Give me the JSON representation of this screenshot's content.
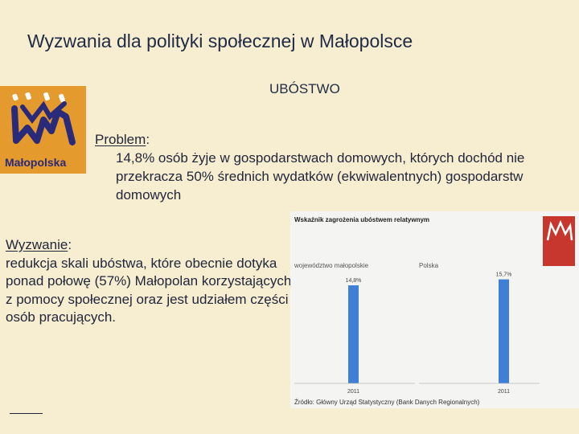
{
  "slide": {
    "title": "Wyzwania dla polityki społecznej w Małopolsce",
    "subtitle": "UBÓSTWO"
  },
  "logo": {
    "text": "Małopolska",
    "color": "#e59a2d"
  },
  "problem": {
    "label": "Problem",
    "colon": ":",
    "text": "14,8% osób  żyje  w gospodarstwach domowych, których dochód nie przekracza 50% średnich wydatków (ekwiwalentnych) gospodarstw domowych"
  },
  "challenge": {
    "label": "Wyzwanie",
    "colon": ":",
    "text": "redukcja skali ubóstwa, które obecnie dotyka ponad połowę (57%) Małopolan korzystających z pomocy społecznej oraz jest udziałem części osób pracujących."
  },
  "chart_data": {
    "type": "bar",
    "title": "Wskaźnik zagrożenia ubóstwem relatywnym",
    "panels": [
      {
        "name": "województwo małopolskie",
        "categories": [
          "2011"
        ],
        "values": [
          14.8
        ],
        "value_label": "14,8%"
      },
      {
        "name": "Polska",
        "categories": [
          "2011"
        ],
        "values": [
          15.7
        ],
        "value_label": "15,7%"
      }
    ],
    "ylim": [
      0,
      16.5
    ],
    "bar_color": "#3f7fd6",
    "source": "Źródło: Główny Urząd Statystyczny (Bank Danych Regionalnych)",
    "badge_color": "#c8372d"
  }
}
